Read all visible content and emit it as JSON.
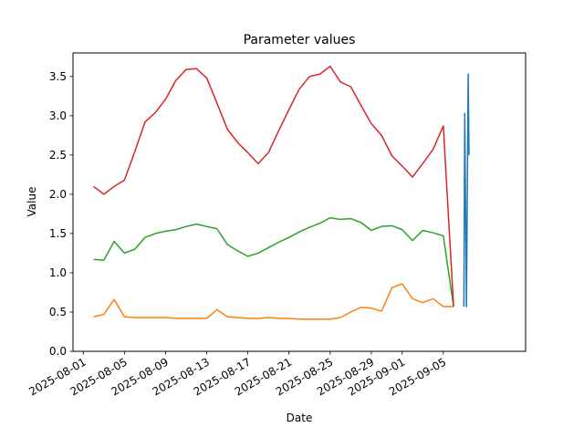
{
  "chart_data": {
    "type": "line",
    "title": "Parameter values",
    "xlabel": "Date",
    "ylabel": "Value",
    "xlim": [
      "2025-07-31",
      "2025-09-13"
    ],
    "ylim": [
      0,
      3.8
    ],
    "x_ticks": [
      "2025-08-01",
      "2025-08-05",
      "2025-08-09",
      "2025-08-13",
      "2025-08-17",
      "2025-08-21",
      "2025-08-25",
      "2025-08-29",
      "2025-09-01",
      "2025-09-05"
    ],
    "y_ticks": [
      "0.0",
      "0.5",
      "1.0",
      "1.5",
      "2.0",
      "2.5",
      "3.0",
      "3.5"
    ],
    "grid": false,
    "legend": "none",
    "series": [
      {
        "color": "#1f77b4",
        "points": [
          [
            "2025-09-07 00:00",
            0.57
          ],
          [
            "2025-09-07 02:00",
            3.03
          ],
          [
            "2025-09-07 04:00",
            1.8
          ],
          [
            "2025-09-07 06:00",
            0.57
          ],
          [
            "2025-09-07 08:00",
            2.0
          ],
          [
            "2025-09-07 10:00",
            3.53
          ],
          [
            "2025-09-07 12:00",
            2.5
          ]
        ]
      },
      {
        "color": "#ff7f0e",
        "points": [
          [
            "2025-08-02",
            0.44
          ],
          [
            "2025-08-03",
            0.47
          ],
          [
            "2025-08-04",
            0.66
          ],
          [
            "2025-08-05",
            0.44
          ],
          [
            "2025-08-06",
            0.43
          ],
          [
            "2025-08-07",
            0.43
          ],
          [
            "2025-08-08",
            0.43
          ],
          [
            "2025-08-09",
            0.43
          ],
          [
            "2025-08-10",
            0.42
          ],
          [
            "2025-08-11",
            0.42
          ],
          [
            "2025-08-12",
            0.42
          ],
          [
            "2025-08-13",
            0.42
          ],
          [
            "2025-08-14",
            0.53
          ],
          [
            "2025-08-15",
            0.44
          ],
          [
            "2025-08-16",
            0.43
          ],
          [
            "2025-08-17",
            0.42
          ],
          [
            "2025-08-18",
            0.42
          ],
          [
            "2025-08-19",
            0.43
          ],
          [
            "2025-08-20",
            0.42
          ],
          [
            "2025-08-21",
            0.42
          ],
          [
            "2025-08-22",
            0.41
          ],
          [
            "2025-08-23",
            0.41
          ],
          [
            "2025-08-24",
            0.41
          ],
          [
            "2025-08-25",
            0.41
          ],
          [
            "2025-08-26",
            0.43
          ],
          [
            "2025-08-27",
            0.5
          ],
          [
            "2025-08-28",
            0.56
          ],
          [
            "2025-08-29",
            0.55
          ],
          [
            "2025-08-30",
            0.51
          ],
          [
            "2025-08-31",
            0.81
          ],
          [
            "2025-09-01",
            0.86
          ],
          [
            "2025-09-02",
            0.67
          ],
          [
            "2025-09-03",
            0.62
          ],
          [
            "2025-09-04",
            0.67
          ],
          [
            "2025-09-05",
            0.57
          ],
          [
            "2025-09-06",
            0.57
          ]
        ]
      },
      {
        "color": "#2ca02c",
        "points": [
          [
            "2025-08-02",
            1.17
          ],
          [
            "2025-08-03",
            1.16
          ],
          [
            "2025-08-04",
            1.4
          ],
          [
            "2025-08-05",
            1.25
          ],
          [
            "2025-08-06",
            1.3
          ],
          [
            "2025-08-07",
            1.45
          ],
          [
            "2025-08-08",
            1.5
          ],
          [
            "2025-08-09",
            1.53
          ],
          [
            "2025-08-10",
            1.55
          ],
          [
            "2025-08-11",
            1.59
          ],
          [
            "2025-08-12",
            1.62
          ],
          [
            "2025-08-13",
            1.59
          ],
          [
            "2025-08-14",
            1.56
          ],
          [
            "2025-08-15",
            1.36
          ],
          [
            "2025-08-16",
            1.28
          ],
          [
            "2025-08-17",
            1.21
          ],
          [
            "2025-08-18",
            1.25
          ],
          [
            "2025-08-19",
            1.32
          ],
          [
            "2025-08-20",
            1.39
          ],
          [
            "2025-08-21",
            1.45
          ],
          [
            "2025-08-22",
            1.52
          ],
          [
            "2025-08-23",
            1.58
          ],
          [
            "2025-08-24",
            1.63
          ],
          [
            "2025-08-25",
            1.7
          ],
          [
            "2025-08-26",
            1.68
          ],
          [
            "2025-08-27",
            1.69
          ],
          [
            "2025-08-28",
            1.64
          ],
          [
            "2025-08-29",
            1.54
          ],
          [
            "2025-08-30",
            1.59
          ],
          [
            "2025-08-31",
            1.6
          ],
          [
            "2025-09-01",
            1.55
          ],
          [
            "2025-09-02",
            1.41
          ],
          [
            "2025-09-03",
            1.54
          ],
          [
            "2025-09-04",
            1.51
          ],
          [
            "2025-09-05",
            1.47
          ],
          [
            "2025-09-06",
            0.57
          ]
        ]
      },
      {
        "color": "#d62728",
        "points": [
          [
            "2025-08-02",
            2.1
          ],
          [
            "2025-08-03",
            2.0
          ],
          [
            "2025-08-04",
            2.1
          ],
          [
            "2025-08-05",
            2.18
          ],
          [
            "2025-08-06",
            2.54
          ],
          [
            "2025-08-07",
            2.92
          ],
          [
            "2025-08-08",
            3.04
          ],
          [
            "2025-08-09",
            3.21
          ],
          [
            "2025-08-10",
            3.45
          ],
          [
            "2025-08-11",
            3.59
          ],
          [
            "2025-08-12",
            3.6
          ],
          [
            "2025-08-13",
            3.48
          ],
          [
            "2025-08-14",
            3.16
          ],
          [
            "2025-08-15",
            2.83
          ],
          [
            "2025-08-16",
            2.66
          ],
          [
            "2025-08-17",
            2.53
          ],
          [
            "2025-08-18",
            2.39
          ],
          [
            "2025-08-19",
            2.53
          ],
          [
            "2025-08-20",
            2.81
          ],
          [
            "2025-08-21",
            3.08
          ],
          [
            "2025-08-22",
            3.34
          ],
          [
            "2025-08-23",
            3.5
          ],
          [
            "2025-08-24",
            3.53
          ],
          [
            "2025-08-25",
            3.63
          ],
          [
            "2025-08-26",
            3.43
          ],
          [
            "2025-08-27",
            3.37
          ],
          [
            "2025-08-28",
            3.13
          ],
          [
            "2025-08-29",
            2.9
          ],
          [
            "2025-08-30",
            2.75
          ],
          [
            "2025-08-31",
            2.49
          ],
          [
            "2025-09-01",
            2.36
          ],
          [
            "2025-09-02",
            2.22
          ],
          [
            "2025-09-03",
            2.39
          ],
          [
            "2025-09-04",
            2.57
          ],
          [
            "2025-09-05",
            2.87
          ],
          [
            "2025-09-06",
            0.57
          ]
        ]
      }
    ]
  }
}
